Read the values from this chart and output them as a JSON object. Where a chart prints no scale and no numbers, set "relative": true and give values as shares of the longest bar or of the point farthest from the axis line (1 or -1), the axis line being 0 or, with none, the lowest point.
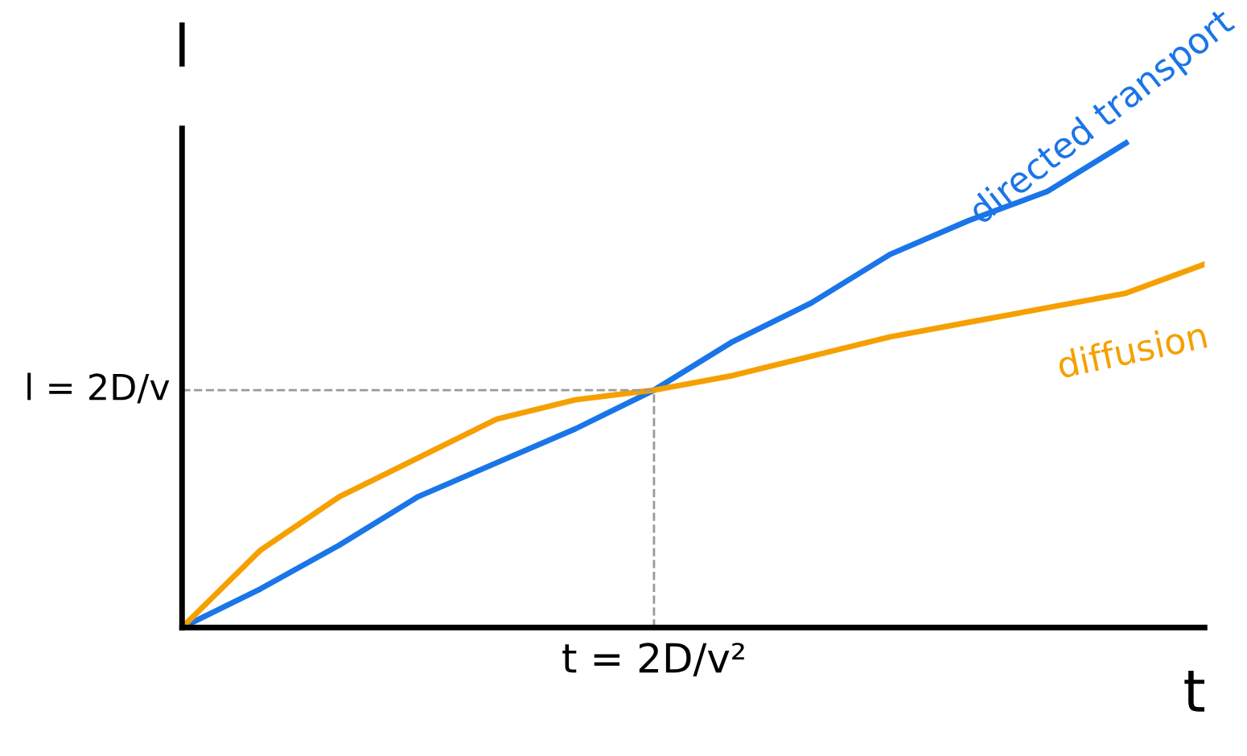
{
  "chart_data": {
    "type": "line",
    "relative": true,
    "xlabel": "t",
    "ylabel": "l",
    "categories": [
      null,
      null,
      null,
      null,
      null,
      null,
      null,
      null,
      null,
      null,
      null,
      null,
      null,
      null
    ],
    "series": [
      {
        "color": "#1a75e8",
        "values": [
          0,
          0.08,
          0.17,
          0.27,
          0.34,
          0.41,
          0.49,
          0.59,
          0.67,
          0.77,
          0.84,
          0.9,
          1.0,
          null
        ]
      },
      {
        "color": "#f5a000",
        "values": [
          0,
          0.16,
          0.27,
          0.35,
          0.43,
          0.47,
          0.49,
          0.52,
          0.56,
          0.6,
          0.63,
          0.66,
          0.69,
          0.75
        ]
      }
    ],
    "ref_lines": [
      {
        "axis": "y",
        "value": 0.49,
        "color": "#999999",
        "line_style": "dashed"
      }
    ],
    "annotations": [
      "t = 2D/v²",
      "directed transport",
      "diffusion",
      "l = 2D/v"
    ],
    "legend": false,
    "marker": "none",
    "line_style": "solid"
  }
}
